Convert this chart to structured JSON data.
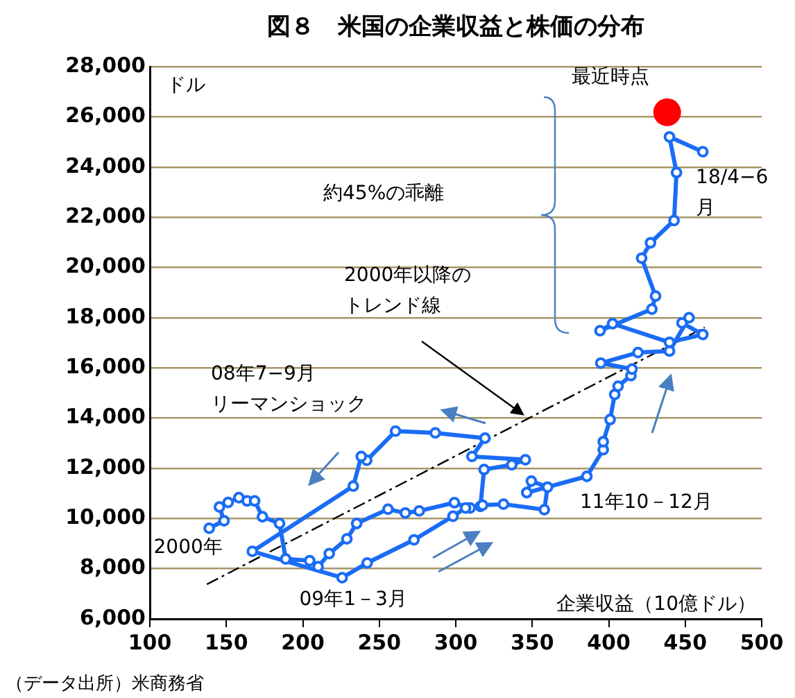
{
  "chart_data": {
    "type": "line",
    "title": "図８　米国の企業収益と株価の分布",
    "xlabel": "企業収益（10億ドル）",
    "ylabel": "ドル",
    "xlim": [
      100,
      500
    ],
    "xticks": [
      100,
      150,
      200,
      250,
      300,
      350,
      400,
      450,
      500
    ],
    "ylim": [
      6000,
      28000
    ],
    "yticks": [
      {
        "value": 6000,
        "label": "6,000"
      },
      {
        "value": 8000,
        "label": "8,000"
      },
      {
        "value": 10000,
        "label": "10,000"
      },
      {
        "value": 12000,
        "label": "12,000"
      },
      {
        "value": 14000,
        "label": "14,000"
      },
      {
        "value": 16000,
        "label": "16,000"
      },
      {
        "value": 18000,
        "label": "18,000"
      },
      {
        "value": 20000,
        "label": "20,000"
      },
      {
        "value": 22000,
        "label": "22,000"
      },
      {
        "value": 24000,
        "label": "24,000"
      },
      {
        "value": 26000,
        "label": "26,000"
      },
      {
        "value": 28000,
        "label": "28,000"
      }
    ],
    "grid": "y",
    "legend": false,
    "series": [
      {
        "type": "line",
        "color": "#1a6cf5",
        "marker": "circle",
        "line_style": "solid",
        "x": [
          138.8,
          148.5,
          145.5,
          151.2,
          158.2,
          163.6,
          168.5,
          173.6,
          184.8,
          188.8,
          204.5,
          210,
          217.3,
          228.8,
          235.2,
          255.7,
          267,
          276.1,
          299.1,
          309.4,
          316.1,
          318.5,
          336.6,
          345.5,
          310.6,
          319.1,
          286.6,
          260.6,
          241.8,
          238.2,
          233,
          167,
          225.7,
          242.1,
          272.7,
          298.2,
          306.4,
          317.5,
          331.2,
          357.9,
          360,
          349.4,
          346.4,
          385.7,
          396.4,
          396.4,
          400.9,
          403.9,
          406.1,
          414.5,
          415.2,
          394.8,
          419.1,
          439.7,
          452.5,
          447.9,
          461.5,
          439.7,
          402.5,
          394.3,
          428.2,
          430.6,
          421.5,
          427.3,
          442.7,
          444.3,
          439.7,
          461.5
        ],
        "values": [
          9610,
          9910,
          10460,
          10640,
          10830,
          10700,
          10700,
          10070,
          9800,
          8390,
          8320,
          8080,
          8600,
          9190,
          9800,
          10370,
          10220,
          10300,
          10630,
          10420,
          10480,
          11950,
          12140,
          12340,
          12470,
          13200,
          13410,
          13480,
          12320,
          12470,
          11290,
          8690,
          7640,
          8230,
          9150,
          10090,
          10420,
          10530,
          10570,
          10350,
          11250,
          11490,
          11030,
          11680,
          12740,
          13060,
          13940,
          14940,
          15270,
          15690,
          15950,
          16190,
          16610,
          16670,
          18000,
          17790,
          17330,
          17020,
          17760,
          17480,
          18340,
          18860,
          20370,
          20980,
          21870,
          23780,
          25200,
          24610
        ]
      },
      {
        "type": "line",
        "color": "#000000",
        "marker": "none",
        "line_style": "dashed",
        "x": [
          137.3,
          462.7
        ],
        "values": [
          7380,
          17610
        ]
      },
      {
        "type": "scatter",
        "color": "#ff0000",
        "marker": "circle",
        "x": [
          438.2
        ],
        "values": [
          26180
        ]
      }
    ],
    "annotations": [
      {
        "text": "2000年",
        "x": 138.8,
        "y": 9610
      },
      {
        "text": "09年1－3月",
        "x": 225.7,
        "y": 7640
      },
      "08年7−9月リーマンショック",
      {
        "text": "11年10－12月",
        "x": 385.7,
        "y": 11680
      },
      "2000年以降のトレンド線",
      "約45%の乖離",
      {
        "text": "最近時点",
        "x": 438.2,
        "y": 26180
      },
      {
        "text": "18/4−6月",
        "x": 461.5,
        "y": 24610
      },
      "（データ出所）米商務省"
    ]
  }
}
